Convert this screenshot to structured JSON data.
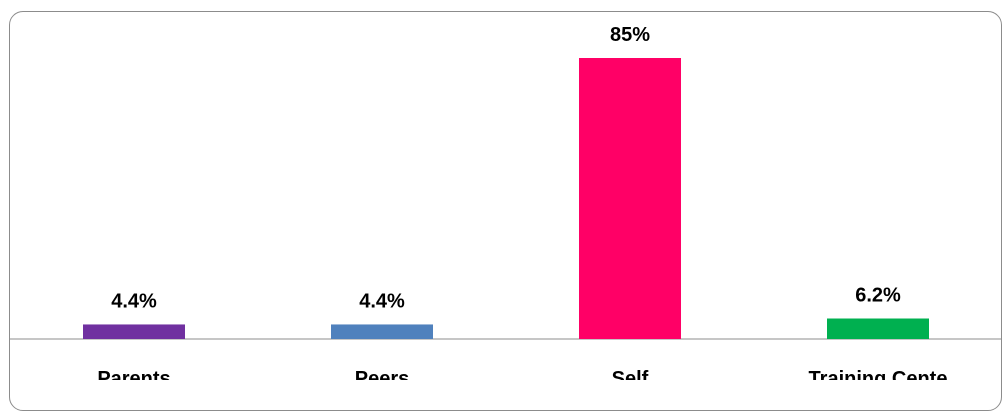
{
  "chart_data": {
    "type": "bar",
    "categories": [
      "Parents",
      "Peers",
      "Self",
      "Training Cente"
    ],
    "values": [
      4.4,
      4.4,
      85,
      6.2
    ],
    "value_labels": [
      "4.4%",
      "4.4%",
      "85%",
      "6.2%"
    ],
    "colors": [
      "#7030a0",
      "#4f81bd",
      "#ff0066",
      "#00b050"
    ],
    "ylim": [
      0,
      85
    ],
    "grid": false,
    "legend": "none"
  }
}
